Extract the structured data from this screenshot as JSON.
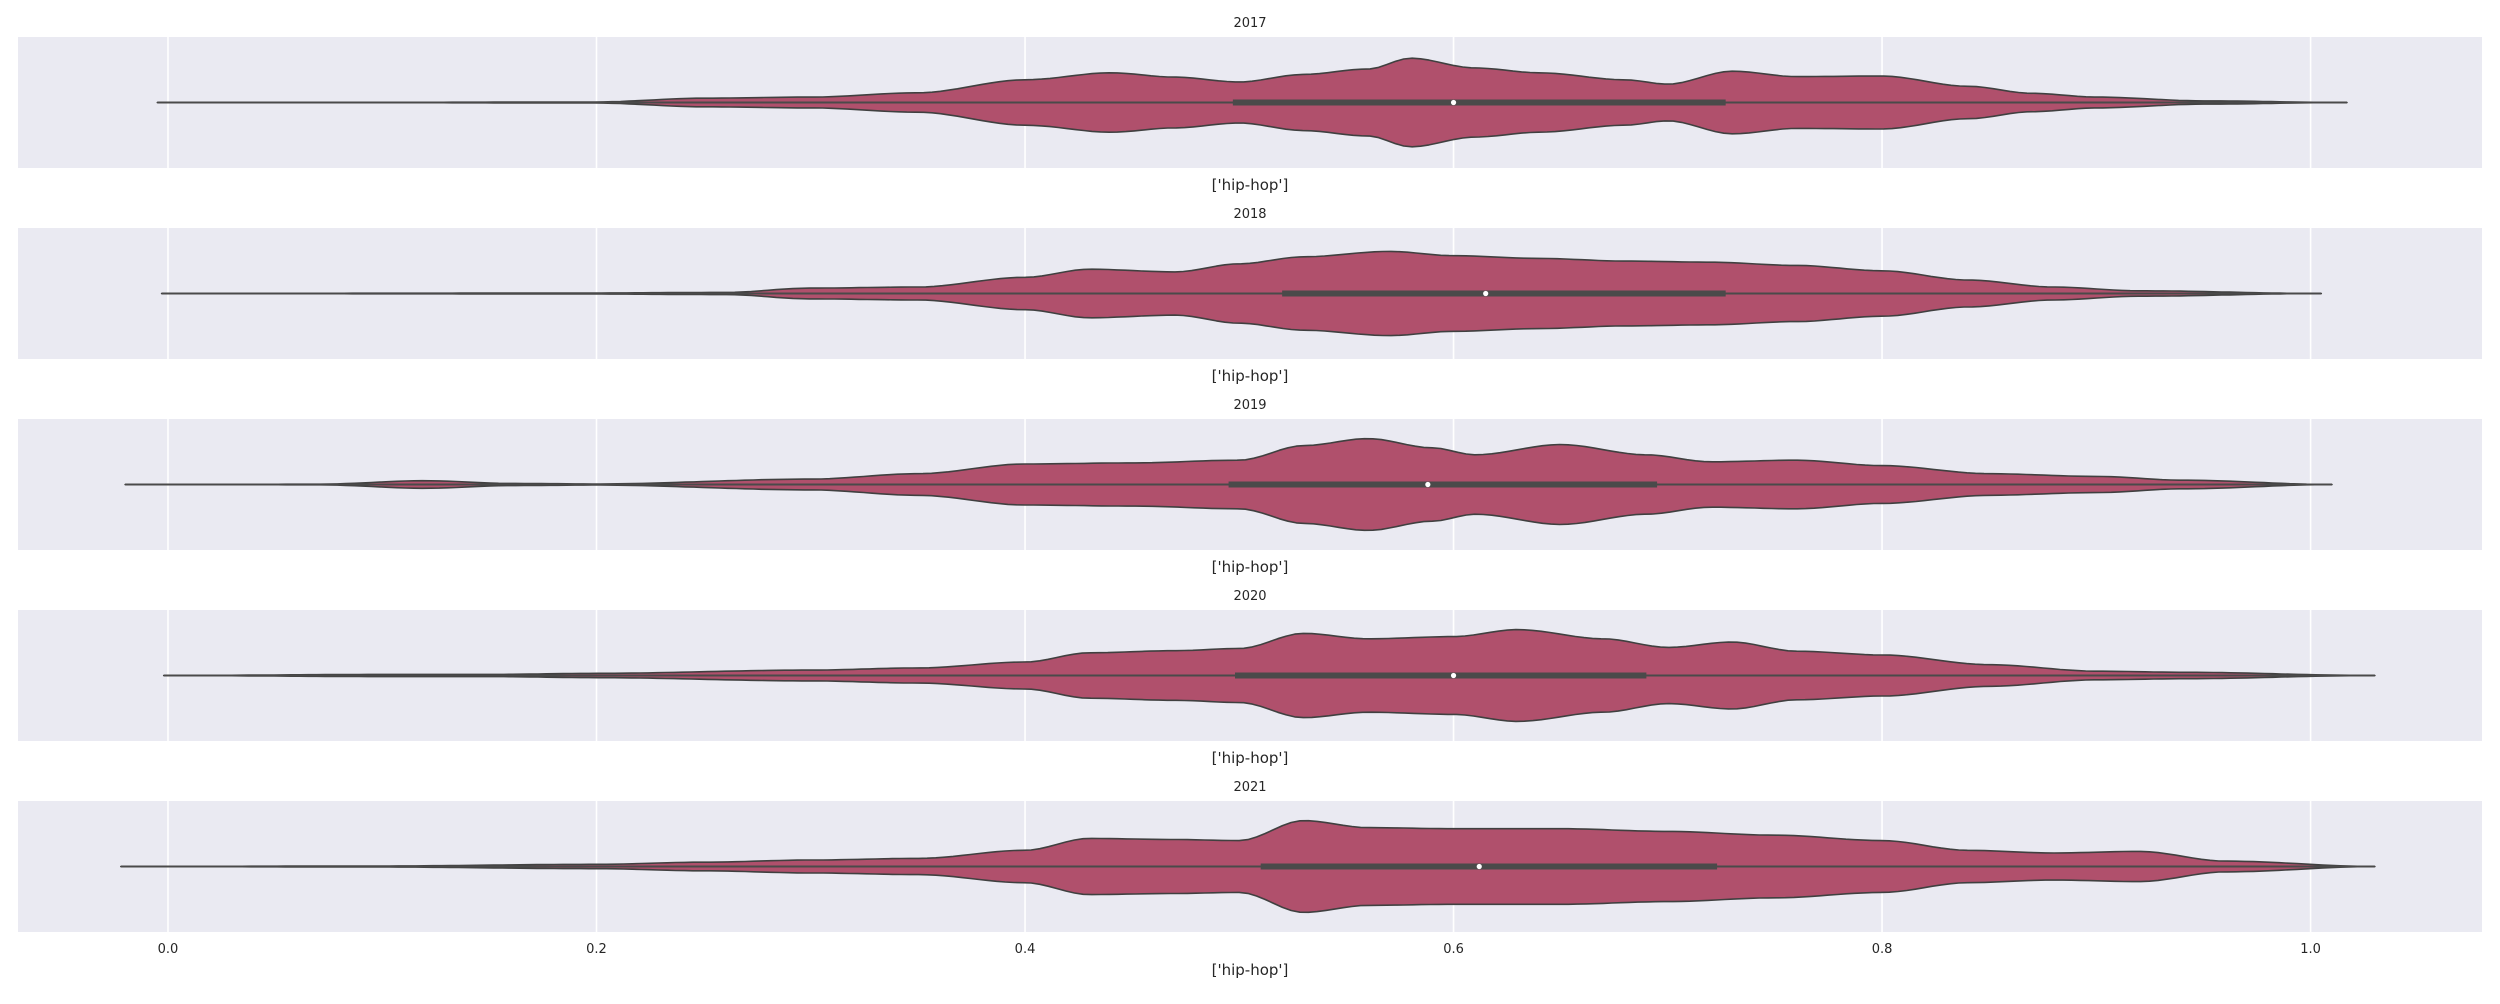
{
  "chart_data": {
    "type": "violin",
    "xlim": [
      -0.07,
      1.08
    ],
    "x_ticks": [
      0.0,
      0.2,
      0.4,
      0.6,
      0.8,
      1.0
    ],
    "x_tick_labels": [
      "0.0",
      "0.2",
      "0.4",
      "0.6",
      "0.8",
      "1.0"
    ],
    "grid": true,
    "colors": {
      "panel_bg": "#eaeaf2",
      "grid": "#ffffff",
      "violin_fill": "#b0506c",
      "violin_edge": "#404040",
      "box": "#4a4a4a",
      "median": "#ffffff"
    },
    "panels": [
      {
        "title": "2017",
        "xlabel": "['hip-hop']",
        "category": "['hip-hop']",
        "whisker": [
          -0.005,
          1.017
        ],
        "box": {
          "q1": 0.497,
          "median": 0.6,
          "q3": 0.727
        },
        "density_points": [
          [
            -0.005,
            0.0
          ],
          [
            0.1,
            0.003
          ],
          [
            0.2,
            0.01
          ],
          [
            0.25,
            0.08
          ],
          [
            0.3,
            0.1
          ],
          [
            0.35,
            0.18
          ],
          [
            0.4,
            0.42
          ],
          [
            0.44,
            0.55
          ],
          [
            0.47,
            0.47
          ],
          [
            0.5,
            0.38
          ],
          [
            0.53,
            0.52
          ],
          [
            0.56,
            0.62
          ],
          [
            0.58,
            0.82
          ],
          [
            0.61,
            0.64
          ],
          [
            0.64,
            0.55
          ],
          [
            0.68,
            0.42
          ],
          [
            0.7,
            0.34
          ],
          [
            0.73,
            0.58
          ],
          [
            0.76,
            0.48
          ],
          [
            0.8,
            0.49
          ],
          [
            0.84,
            0.3
          ],
          [
            0.87,
            0.17
          ],
          [
            0.9,
            0.1
          ],
          [
            0.95,
            0.03
          ],
          [
            1.017,
            0.0
          ]
        ]
      },
      {
        "title": "2018",
        "xlabel": "['hip-hop']",
        "category": "['hip-hop']",
        "whisker": [
          -0.003,
          1.005
        ],
        "box": {
          "q1": 0.52,
          "median": 0.615,
          "q3": 0.727
        },
        "density_points": [
          [
            -0.003,
            0.0
          ],
          [
            0.1,
            0.005
          ],
          [
            0.2,
            0.01
          ],
          [
            0.26,
            0.02
          ],
          [
            0.3,
            0.1
          ],
          [
            0.35,
            0.12
          ],
          [
            0.4,
            0.3
          ],
          [
            0.43,
            0.45
          ],
          [
            0.47,
            0.4
          ],
          [
            0.5,
            0.55
          ],
          [
            0.53,
            0.68
          ],
          [
            0.57,
            0.78
          ],
          [
            0.6,
            0.7
          ],
          [
            0.64,
            0.65
          ],
          [
            0.68,
            0.6
          ],
          [
            0.72,
            0.58
          ],
          [
            0.76,
            0.52
          ],
          [
            0.8,
            0.42
          ],
          [
            0.84,
            0.25
          ],
          [
            0.88,
            0.12
          ],
          [
            0.92,
            0.05
          ],
          [
            1.005,
            0.0
          ]
        ]
      },
      {
        "title": "2019",
        "xlabel": "['hip-hop']",
        "category": "['hip-hop']",
        "whisker": [
          -0.02,
          1.01
        ],
        "box": {
          "q1": 0.495,
          "median": 0.588,
          "q3": 0.695
        },
        "density_points": [
          [
            -0.02,
            0.0
          ],
          [
            0.07,
            0.005
          ],
          [
            0.12,
            0.07
          ],
          [
            0.16,
            0.02
          ],
          [
            0.2,
            0.01
          ],
          [
            0.3,
            0.1
          ],
          [
            0.35,
            0.2
          ],
          [
            0.4,
            0.38
          ],
          [
            0.45,
            0.4
          ],
          [
            0.5,
            0.45
          ],
          [
            0.53,
            0.72
          ],
          [
            0.56,
            0.85
          ],
          [
            0.59,
            0.68
          ],
          [
            0.61,
            0.55
          ],
          [
            0.65,
            0.74
          ],
          [
            0.69,
            0.55
          ],
          [
            0.72,
            0.42
          ],
          [
            0.76,
            0.45
          ],
          [
            0.8,
            0.35
          ],
          [
            0.85,
            0.2
          ],
          [
            0.9,
            0.15
          ],
          [
            0.94,
            0.08
          ],
          [
            1.01,
            0.0
          ]
        ]
      },
      {
        "title": "2020",
        "xlabel": "['hip-hop']",
        "category": "['hip-hop']",
        "whisker": [
          -0.002,
          1.03
        ],
        "box": {
          "q1": 0.498,
          "median": 0.6,
          "q3": 0.69
        },
        "density_points": [
          [
            -0.002,
            0.0
          ],
          [
            0.1,
            0.02
          ],
          [
            0.15,
            0.02
          ],
          [
            0.2,
            0.04
          ],
          [
            0.3,
            0.1
          ],
          [
            0.35,
            0.14
          ],
          [
            0.4,
            0.25
          ],
          [
            0.43,
            0.42
          ],
          [
            0.47,
            0.46
          ],
          [
            0.5,
            0.5
          ],
          [
            0.53,
            0.78
          ],
          [
            0.56,
            0.68
          ],
          [
            0.6,
            0.72
          ],
          [
            0.63,
            0.85
          ],
          [
            0.67,
            0.68
          ],
          [
            0.7,
            0.52
          ],
          [
            0.73,
            0.62
          ],
          [
            0.76,
            0.45
          ],
          [
            0.8,
            0.38
          ],
          [
            0.85,
            0.2
          ],
          [
            0.9,
            0.08
          ],
          [
            0.94,
            0.06
          ],
          [
            1.03,
            0.0
          ]
        ]
      },
      {
        "title": "2021",
        "xlabel": "['hip-hop']",
        "category": "['hip-hop']",
        "whisker": [
          -0.022,
          1.03
        ],
        "box": {
          "q1": 0.51,
          "median": 0.612,
          "q3": 0.723
        },
        "density_points": [
          [
            -0.022,
            0.0
          ],
          [
            0.1,
            0.01
          ],
          [
            0.2,
            0.04
          ],
          [
            0.25,
            0.08
          ],
          [
            0.3,
            0.12
          ],
          [
            0.35,
            0.15
          ],
          [
            0.4,
            0.3
          ],
          [
            0.43,
            0.52
          ],
          [
            0.47,
            0.5
          ],
          [
            0.5,
            0.48
          ],
          [
            0.53,
            0.85
          ],
          [
            0.56,
            0.72
          ],
          [
            0.6,
            0.7
          ],
          [
            0.65,
            0.7
          ],
          [
            0.7,
            0.65
          ],
          [
            0.75,
            0.58
          ],
          [
            0.8,
            0.48
          ],
          [
            0.84,
            0.3
          ],
          [
            0.88,
            0.25
          ],
          [
            0.92,
            0.28
          ],
          [
            0.96,
            0.1
          ],
          [
            1.03,
            0.0
          ]
        ]
      }
    ]
  }
}
